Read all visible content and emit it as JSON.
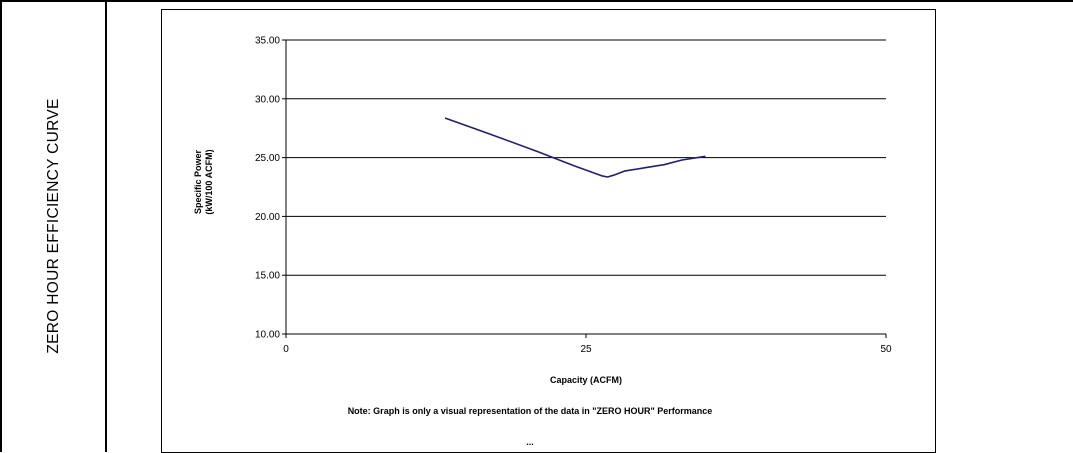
{
  "side_title": "ZERO HOUR EFFICIENCY CURVE",
  "chart_data": {
    "type": "line",
    "title": "",
    "xlabel": "Capacity (ACFM)",
    "ylabel_lines": [
      "Specific Power",
      "(kW/100 ACFM)"
    ],
    "xlim": [
      0,
      50
    ],
    "ylim": [
      10,
      35
    ],
    "x_ticks": [
      0,
      25,
      50
    ],
    "y_ticks": [
      "10.00",
      "15.00",
      "20.00",
      "25.00",
      "30.00",
      "35.00"
    ],
    "grid": "horizontal",
    "line_color": "#1f1f7a",
    "series": [
      {
        "x": [
          13.3,
          17,
          21,
          24,
          26.3,
          26.8,
          27.3,
          28.2,
          30,
          31.5,
          33,
          34.9
        ],
        "y": [
          28.35,
          27.0,
          25.5,
          24.3,
          23.45,
          23.35,
          23.5,
          23.85,
          24.15,
          24.4,
          24.8,
          25.1
        ]
      }
    ],
    "note": "Note:  Graph is only a visual representation of the data in \"ZERO HOUR\" Performance",
    "footer": "..."
  }
}
